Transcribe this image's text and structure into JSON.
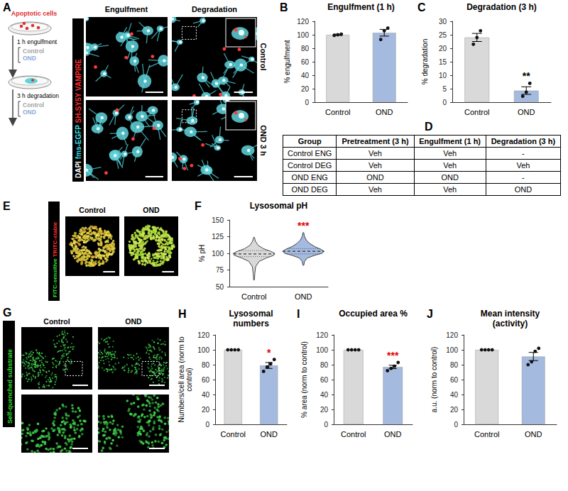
{
  "panels": [
    {
      "label": "A",
      "schematic": {
        "cells": "Apoptotic cells",
        "engulfment": "1 h engulfment",
        "degradation": "3 h degradation",
        "conditions": [
          {
            "text": "Control",
            "color": "#a6a6a6"
          },
          {
            "text": "OND",
            "color": "#8eaadb"
          }
        ]
      },
      "stains": [
        {
          "text": "DAPI",
          "color": "#ffffff"
        },
        {
          "text": "fms-EGFP",
          "color": "#3fe0e8"
        },
        {
          "text": "SH-SY5Y VAMPIRE",
          "color": "#ff3030"
        }
      ],
      "columns": [
        "Engulfment",
        "Degradation"
      ],
      "rows": [
        "Control",
        "OND 3 h"
      ]
    },
    {
      "label": "D",
      "table": {
        "header": [
          "Group",
          "Pretreatment (3 h)",
          "Engulfment (1 h)",
          "Degradation (3 h)"
        ],
        "rows": [
          [
            "Control ENG",
            "Veh",
            "Veh",
            "-"
          ],
          [
            "Control DEG",
            "Veh",
            "Veh",
            "Veh"
          ],
          [
            "OND ENG",
            "OND",
            "OND",
            "-"
          ],
          [
            "OND DEG",
            "Veh",
            "Veh",
            "OND"
          ]
        ]
      }
    },
    {
      "label": "E",
      "stains": [
        {
          "text": "FITC-sensitive",
          "color": "#33dd33"
        },
        {
          "text": "TRITC-stable",
          "color": "#ff3030"
        }
      ],
      "columns": [
        "Control",
        "OND"
      ]
    },
    {
      "label": "G",
      "stains": [
        {
          "text": "Self-quenched substrate",
          "color": "#33dd33"
        }
      ],
      "columns": [
        "Control",
        "OND"
      ]
    }
  ],
  "chart_data": [
    {
      "label": "B",
      "type": "bar",
      "title": "Engulfment (1 h)",
      "ylabel": "% engulfment",
      "categories": [
        "Control",
        "OND"
      ],
      "values": [
        100,
        103
      ],
      "errors": [
        1,
        5
      ],
      "points": [
        [
          99,
          100,
          101
        ],
        [
          93,
          106,
          110
        ]
      ],
      "colors": [
        "#d9d9d9",
        "#a4badf"
      ],
      "ylim": [
        0,
        120
      ],
      "yticks": [
        0,
        20,
        40,
        60,
        80,
        100,
        120
      ],
      "grid": false,
      "data_labels": false
    },
    {
      "label": "C",
      "type": "bar",
      "title": "Degradation (3 h)",
      "ylabel": "% degradation",
      "categories": [
        "Control",
        "OND"
      ],
      "values": [
        24,
        4.3
      ],
      "errors": [
        1.5,
        1.4
      ],
      "points": [
        [
          21.5,
          24,
          26.5
        ],
        [
          2.2,
          3.7,
          7
        ]
      ],
      "colors": [
        "#d9d9d9",
        "#a4badf"
      ],
      "ylim": [
        0,
        30
      ],
      "yticks": [
        0,
        5,
        10,
        15,
        20,
        25,
        30
      ],
      "grid": false,
      "data_labels": false,
      "annotations": [
        {
          "category": "OND",
          "text": "**",
          "color": "#000000"
        }
      ]
    },
    {
      "label": "F",
      "type": "violin",
      "title": "Lysosomal pH",
      "ylabel": "% pH",
      "categories": [
        "Control",
        "OND"
      ],
      "colors": [
        "#d9d9d9",
        "#a4badf"
      ],
      "violins": [
        {
          "y": [
            60,
            70,
            80,
            88,
            93,
            97,
            100,
            103,
            107,
            112,
            118,
            124
          ],
          "density": [
            0.02,
            0.04,
            0.08,
            0.25,
            0.6,
            0.95,
            1,
            0.8,
            0.45,
            0.2,
            0.07,
            0.02
          ],
          "quartiles": [
            95,
            99,
            104
          ]
        },
        {
          "y": [
            82,
            88,
            93,
            97,
            100,
            103,
            106,
            110,
            115,
            120,
            126,
            131
          ],
          "density": [
            0.02,
            0.06,
            0.2,
            0.55,
            0.9,
            1,
            0.85,
            0.55,
            0.3,
            0.14,
            0.05,
            0.02
          ],
          "quartiles": [
            99,
            103,
            107
          ]
        }
      ],
      "ylim": [
        50,
        150
      ],
      "yticks": [
        50,
        75,
        100,
        125,
        150
      ],
      "grid": false,
      "annotations": [
        {
          "category": "OND",
          "text": "***",
          "color": "#e00000"
        }
      ]
    },
    {
      "label": "H",
      "type": "bar",
      "title": "Lysosomal numbers",
      "ylabel": "Numbers/cell area (norm to control)",
      "categories": [
        "Control",
        "OND"
      ],
      "values": [
        100,
        79
      ],
      "errors": [
        0,
        4
      ],
      "points": [
        [
          100,
          100,
          100,
          100
        ],
        [
          71,
          77,
          81,
          87
        ]
      ],
      "colors": [
        "#d9d9d9",
        "#a4badf"
      ],
      "ylim": [
        0,
        120
      ],
      "yticks": [
        0,
        20,
        40,
        60,
        80,
        100,
        120
      ],
      "grid": false,
      "data_labels": false,
      "annotations": [
        {
          "category": "OND",
          "text": "*",
          "color": "#e00000"
        }
      ]
    },
    {
      "label": "I",
      "type": "bar",
      "title": "Occupied area %",
      "ylabel": "% area (norm to control)",
      "categories": [
        "Control",
        "OND"
      ],
      "values": [
        100,
        77
      ],
      "errors": [
        0,
        2.3
      ],
      "points": [
        [
          100,
          100,
          100,
          100
        ],
        [
          72,
          75,
          78,
          83
        ]
      ],
      "colors": [
        "#d9d9d9",
        "#a4badf"
      ],
      "ylim": [
        0,
        120
      ],
      "yticks": [
        0,
        20,
        40,
        60,
        80,
        100,
        120
      ],
      "grid": false,
      "data_labels": false,
      "annotations": [
        {
          "category": "OND",
          "text": "***",
          "color": "#e00000"
        }
      ]
    },
    {
      "label": "J",
      "type": "bar",
      "title": "Mean intensity (activity)",
      "ylabel": "a.u. (norm to control)",
      "categories": [
        "Control",
        "OND"
      ],
      "values": [
        100,
        91
      ],
      "errors": [
        0,
        5.5
      ],
      "points": [
        [
          100,
          100,
          100,
          100
        ],
        [
          80,
          84,
          98,
          102
        ]
      ],
      "colors": [
        "#d9d9d9",
        "#a4badf"
      ],
      "ylim": [
        0,
        120
      ],
      "yticks": [
        0,
        20,
        40,
        60,
        80,
        100,
        120
      ],
      "grid": false,
      "data_labels": false
    }
  ]
}
